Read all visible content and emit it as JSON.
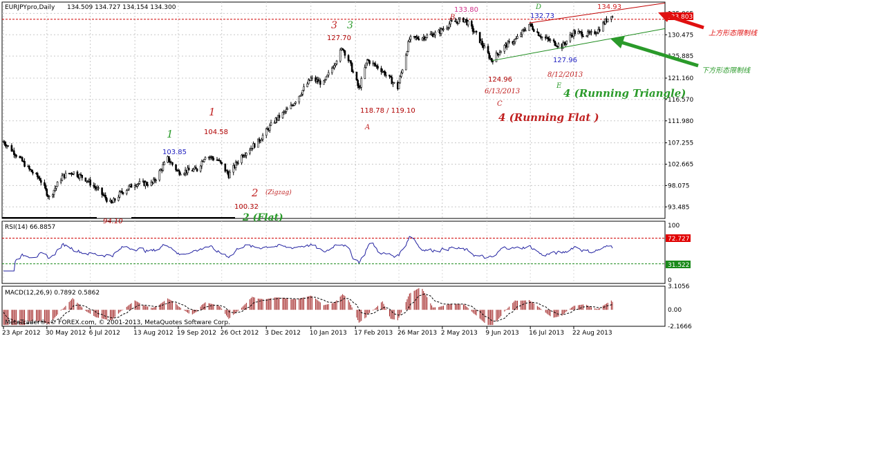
{
  "header": {
    "symbol": "EURJPYpro,Daily",
    "ohlc": "134.509 134.727 134.154 134.300"
  },
  "copyright": "MetaTrader®, © FOREX.com, © 2001-2013, MetaQuotes Software Corp.",
  "chart_data": [
    {
      "type": "candlestick",
      "title": "EURJPYpro,Daily",
      "ylim": [
        91.0,
        137.5
      ],
      "y_ticks": [
        "135.065",
        "130.475",
        "125.885",
        "121.160",
        "116.570",
        "111.980",
        "107.255",
        "102.665",
        "98.075",
        "93.485"
      ],
      "x_ticks": [
        "23 Apr 2012",
        "30 May 2012",
        "6 Jul 2012",
        "13 Aug 2012",
        "19 Sep 2012",
        "26 Oct 2012",
        "3 Dec 2012",
        "10 Jan 2013",
        "17 Feb 2013",
        "26 Mar 2013",
        "2 May 2013",
        "9 Jun 2013",
        "16 Jul 2013",
        "22 Aug 2013"
      ],
      "current_price": "133.803",
      "close_path": [
        [
          "23 Apr 2012",
          107.5
        ],
        [
          "3 May 2012",
          105.0
        ],
        [
          "15 May 2012",
          101.5
        ],
        [
          "24 May 2012",
          99.5
        ],
        [
          "1 Jun 2012",
          95.5
        ],
        [
          "12 Jun 2012",
          100.0
        ],
        [
          "21 Jun 2012",
          101.0
        ],
        [
          "2 Jul 2012",
          99.5
        ],
        [
          "13 Jul 2012",
          97.0
        ],
        [
          "24 Jul 2012",
          94.1
        ],
        [
          "1 Aug 2012",
          96.5
        ],
        [
          "13 Aug 2012",
          98.5
        ],
        [
          "28 Aug 2012",
          98.5
        ],
        [
          "10 Sep 2012",
          103.85
        ],
        [
          "19 Sep 2012",
          101.0
        ],
        [
          "5 Oct 2012",
          101.5
        ],
        [
          "12 Oct 2012",
          104.58
        ],
        [
          "23 Oct 2012",
          103.5
        ],
        [
          "1 Nov 2012",
          100.32
        ],
        [
          "12 Nov 2012",
          104.5
        ],
        [
          "26 Nov 2012",
          107.5
        ],
        [
          "10 Dec 2012",
          112.0
        ],
        [
          "24 Dec 2012",
          115.0
        ],
        [
          "10 Jan 2013",
          121.0
        ],
        [
          "21 Jan 2013",
          120.0
        ],
        [
          "6 Feb 2013",
          127.7
        ],
        [
          "12 Feb 2013",
          124.5
        ],
        [
          "20 Feb 2013",
          118.78
        ],
        [
          "27 Feb 2013",
          125.0
        ],
        [
          "11 Mar 2013",
          123.0
        ],
        [
          "25 Mar 2013",
          119.1
        ],
        [
          "4 Apr 2013",
          129.5
        ],
        [
          "16 Apr 2013",
          130.0
        ],
        [
          "29 Apr 2013",
          131.0
        ],
        [
          "9 May 2013",
          133.0
        ],
        [
          "21 May 2013",
          133.8
        ],
        [
          "31 May 2013",
          130.5
        ],
        [
          "13 Jun 2013",
          124.96
        ],
        [
          "24 Jun 2013",
          128.0
        ],
        [
          "4 Jul 2013",
          129.5
        ],
        [
          "15 Jul 2013",
          132.73
        ],
        [
          "26 Jul 2013",
          130.0
        ],
        [
          "12 Aug 2013",
          127.96
        ],
        [
          "22 Aug 2013",
          131.0
        ],
        [
          "5 Sep 2013",
          130.5
        ],
        [
          "12 Sep 2013",
          131.5
        ],
        [
          "23 Sep 2013",
          134.93
        ],
        [
          "24 Sep 2013",
          134.3
        ]
      ],
      "labels": {
        "l_94_10": "94.10",
        "l_103_85": "103.85",
        "l_104_58": "104.58",
        "l_100_32": "100.32",
        "l_127_70": "127.70",
        "l_118_78": "118.78 / 119.10",
        "l_133_80": "133.80",
        "l_124_96": "124.96",
        "l_132_73": "132.73",
        "l_127_96": "127.96",
        "l_134_93": "134.93"
      },
      "annotations": {
        "wave1_green": "1",
        "wave1_red": "1",
        "wave2_red": "2",
        "zigzag": "(Zigzag)",
        "wave2_flat": "2 (Flat)",
        "wave3_red": "3",
        "wave3_green": "3",
        "A": "A",
        "B": "B",
        "C": "C",
        "D": "D",
        "E": "E",
        "date_c": "6/13/2013",
        "date_e": "8/12/2013",
        "running_flat": "4  (Running Flat )",
        "running_triangle": "4 (Running Triangle)",
        "upper_limit": "上方形态限制线",
        "lower_limit": "下方形态限制线"
      },
      "colors": {
        "bull": "#ffffff",
        "bear": "#000000",
        "red_label": "#b00000",
        "green_label": "#2a9a2a",
        "blue_label": "#2020c0",
        "pink_label": "#d0308a"
      }
    },
    {
      "type": "line",
      "title": "RSI(14) 66.8857",
      "ylim": [
        0,
        100
      ],
      "y_ticks": [
        "100",
        "0"
      ],
      "levels": [
        "72.727",
        "31.522"
      ],
      "color": "#2020a0"
    },
    {
      "type": "bar",
      "title": "MACD(12,26,9) 0.7892 0.5862",
      "y_ticks": [
        "3.1056",
        "0.00",
        "-2.1666"
      ],
      "ylim": [
        -2.1666,
        3.1056
      ],
      "colors": {
        "hist": "#a02020",
        "signal": "#000000"
      }
    }
  ]
}
